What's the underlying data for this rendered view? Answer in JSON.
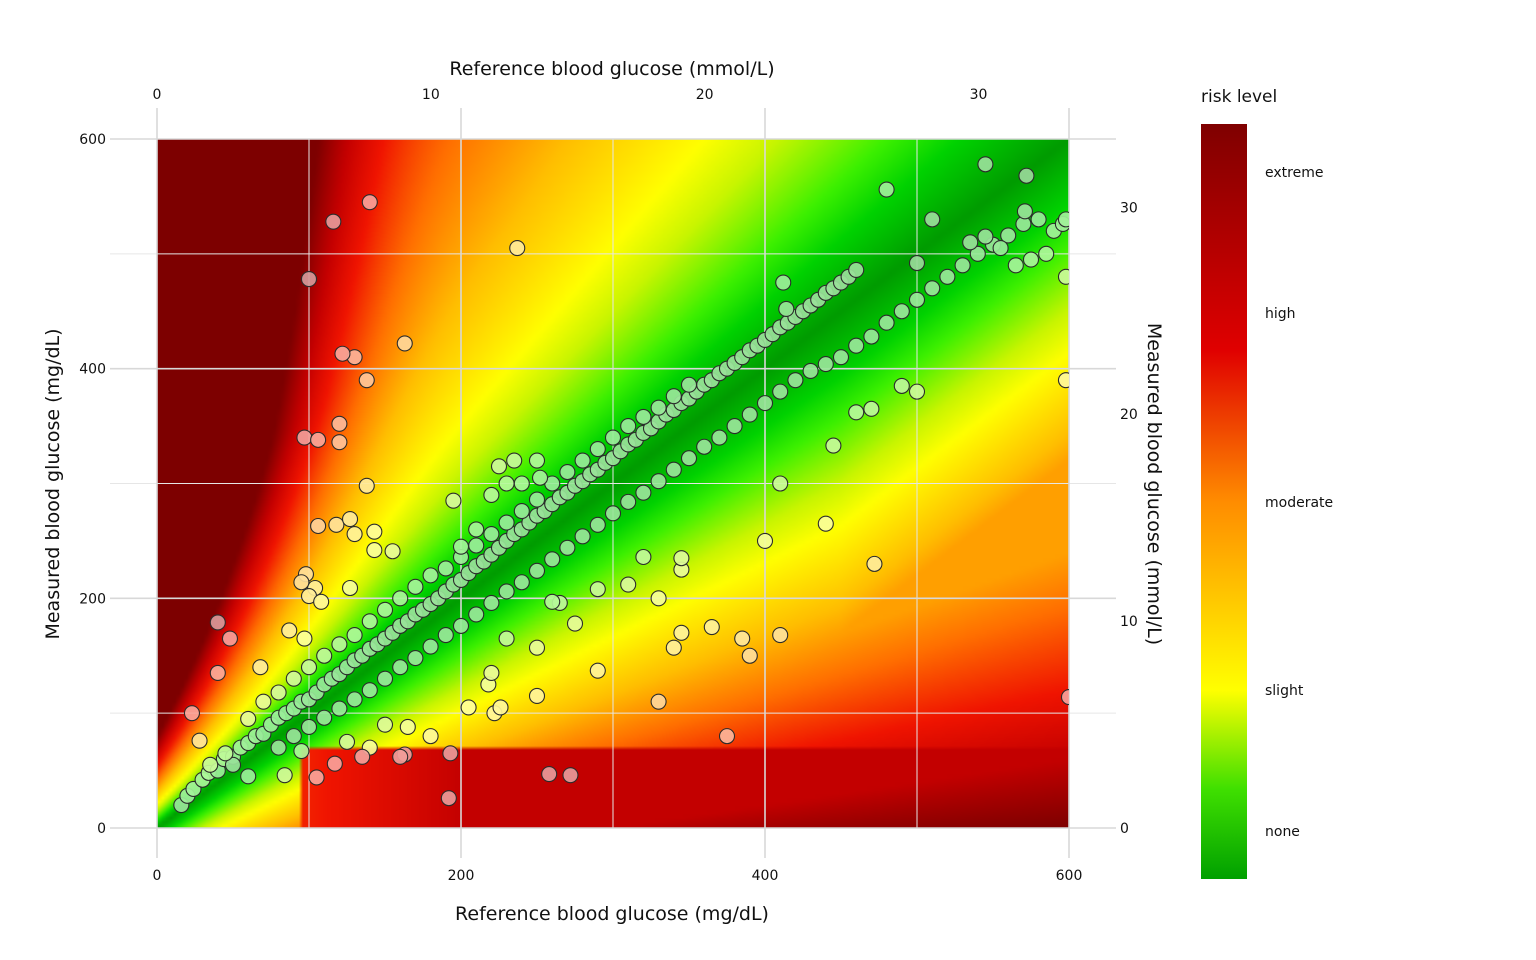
{
  "chart_data": {
    "type": "scatter",
    "title": "",
    "xlabel": "Reference blood glucose (mg/dL)",
    "ylabel": "Measured blood glucose (mg/dL)",
    "x2label": "Reference blood glucose (mmol/L)",
    "y2label": "Measured blood glucose (mmol/L)",
    "xlim": [
      0,
      600
    ],
    "ylim": [
      0,
      600
    ],
    "x_ticks": [
      "0",
      "200",
      "400",
      "600"
    ],
    "y_ticks": [
      "0",
      "200",
      "400",
      "600"
    ],
    "x2_ticks": [
      "0",
      "10",
      "20",
      "30"
    ],
    "y2_ticks": [
      "0",
      "10",
      "20",
      "30"
    ],
    "grid": true,
    "legend_position": "right",
    "legend": {
      "title": "risk level",
      "labels": [
        "extreme",
        "high",
        "moderate",
        "slight",
        "none"
      ],
      "colors": [
        "#7f0000",
        "#e00000",
        "#ff8c00",
        "#ffff00",
        "#00a000"
      ]
    },
    "background": "surveillance error grid risk heatmap",
    "series": [
      {
        "points": [
          [
            16,
            20
          ],
          [
            20,
            28
          ],
          [
            24,
            34
          ],
          [
            30,
            42
          ],
          [
            34,
            48
          ],
          [
            40,
            50
          ],
          [
            44,
            60
          ],
          [
            50,
            62
          ],
          [
            55,
            70
          ],
          [
            60,
            74
          ],
          [
            65,
            80
          ],
          [
            70,
            82
          ],
          [
            75,
            90
          ],
          [
            80,
            96
          ],
          [
            85,
            100
          ],
          [
            90,
            104
          ],
          [
            95,
            110
          ],
          [
            100,
            112
          ],
          [
            105,
            118
          ],
          [
            110,
            125
          ],
          [
            115,
            130
          ],
          [
            120,
            134
          ],
          [
            125,
            140
          ],
          [
            130,
            146
          ],
          [
            135,
            150
          ],
          [
            140,
            156
          ],
          [
            145,
            160
          ],
          [
            150,
            165
          ],
          [
            155,
            170
          ],
          [
            160,
            176
          ],
          [
            165,
            180
          ],
          [
            170,
            186
          ],
          [
            175,
            190
          ],
          [
            180,
            195
          ],
          [
            185,
            200
          ],
          [
            190,
            206
          ],
          [
            195,
            212
          ],
          [
            200,
            216
          ],
          [
            205,
            222
          ],
          [
            210,
            228
          ],
          [
            215,
            232
          ],
          [
            220,
            238
          ],
          [
            225,
            244
          ],
          [
            230,
            250
          ],
          [
            235,
            256
          ],
          [
            240,
            260
          ],
          [
            245,
            266
          ],
          [
            250,
            272
          ],
          [
            255,
            276
          ],
          [
            260,
            282
          ],
          [
            265,
            288
          ],
          [
            270,
            292
          ],
          [
            275,
            298
          ],
          [
            280,
            302
          ],
          [
            285,
            308
          ],
          [
            290,
            312
          ],
          [
            295,
            318
          ],
          [
            300,
            322
          ],
          [
            305,
            328
          ],
          [
            310,
            334
          ],
          [
            315,
            338
          ],
          [
            320,
            344
          ],
          [
            325,
            348
          ],
          [
            330,
            354
          ],
          [
            335,
            360
          ],
          [
            340,
            364
          ],
          [
            345,
            370
          ],
          [
            350,
            374
          ],
          [
            355,
            380
          ],
          [
            360,
            386
          ],
          [
            365,
            390
          ],
          [
            370,
            396
          ],
          [
            375,
            400
          ],
          [
            380,
            405
          ],
          [
            385,
            410
          ],
          [
            390,
            416
          ],
          [
            395,
            420
          ],
          [
            400,
            425
          ],
          [
            405,
            430
          ],
          [
            410,
            436
          ],
          [
            415,
            440
          ],
          [
            420,
            445
          ],
          [
            425,
            450
          ],
          [
            430,
            455
          ],
          [
            435,
            460
          ],
          [
            440,
            466
          ],
          [
            445,
            470
          ],
          [
            450,
            475
          ],
          [
            455,
            480
          ],
          [
            460,
            486
          ],
          [
            60,
            95
          ],
          [
            70,
            110
          ],
          [
            80,
            118
          ],
          [
            90,
            130
          ],
          [
            100,
            140
          ],
          [
            110,
            150
          ],
          [
            120,
            160
          ],
          [
            130,
            168
          ],
          [
            140,
            180
          ],
          [
            150,
            190
          ],
          [
            160,
            200
          ],
          [
            170,
            210
          ],
          [
            180,
            220
          ],
          [
            190,
            226
          ],
          [
            200,
            236
          ],
          [
            210,
            246
          ],
          [
            220,
            256
          ],
          [
            230,
            266
          ],
          [
            240,
            276
          ],
          [
            250,
            286
          ],
          [
            80,
            70
          ],
          [
            90,
            80
          ],
          [
            100,
            88
          ],
          [
            110,
            96
          ],
          [
            120,
            104
          ],
          [
            130,
            112
          ],
          [
            140,
            120
          ],
          [
            150,
            130
          ],
          [
            160,
            140
          ],
          [
            170,
            148
          ],
          [
            180,
            158
          ],
          [
            190,
            168
          ],
          [
            200,
            176
          ],
          [
            210,
            186
          ],
          [
            220,
            196
          ],
          [
            230,
            206
          ],
          [
            240,
            214
          ],
          [
            250,
            224
          ],
          [
            260,
            234
          ],
          [
            270,
            244
          ],
          [
            280,
            254
          ],
          [
            290,
            264
          ],
          [
            300,
            274
          ],
          [
            310,
            284
          ],
          [
            320,
            292
          ],
          [
            330,
            302
          ],
          [
            340,
            312
          ],
          [
            350,
            322
          ],
          [
            360,
            332
          ],
          [
            370,
            340
          ],
          [
            260,
            300
          ],
          [
            270,
            310
          ],
          [
            280,
            320
          ],
          [
            290,
            330
          ],
          [
            300,
            340
          ],
          [
            310,
            350
          ],
          [
            320,
            358
          ],
          [
            330,
            366
          ],
          [
            340,
            376
          ],
          [
            350,
            386
          ],
          [
            380,
            350
          ],
          [
            390,
            360
          ],
          [
            400,
            370
          ],
          [
            410,
            380
          ],
          [
            420,
            390
          ],
          [
            430,
            398
          ],
          [
            440,
            404
          ],
          [
            450,
            410
          ],
          [
            460,
            420
          ],
          [
            470,
            428
          ],
          [
            480,
            440
          ],
          [
            490,
            450
          ],
          [
            500,
            460
          ],
          [
            510,
            470
          ],
          [
            520,
            480
          ],
          [
            530,
            490
          ],
          [
            540,
            500
          ],
          [
            550,
            508
          ],
          [
            560,
            516
          ],
          [
            570,
            526
          ],
          [
            580,
            530
          ],
          [
            590,
            520
          ],
          [
            596,
            526
          ],
          [
            598,
            530
          ],
          [
            585,
            500
          ],
          [
            575,
            495
          ],
          [
            565,
            490
          ],
          [
            555,
            505
          ],
          [
            545,
            515
          ],
          [
            535,
            510
          ],
          [
            480,
            556
          ],
          [
            545,
            578
          ],
          [
            572,
            568
          ],
          [
            571,
            537
          ],
          [
            598,
            480
          ],
          [
            598,
            390
          ],
          [
            600,
            114
          ],
          [
            510,
            530
          ],
          [
            500,
            492
          ],
          [
            490,
            385
          ],
          [
            414,
            452
          ],
          [
            412,
            475
          ],
          [
            500,
            380
          ],
          [
            470,
            365
          ],
          [
            460,
            362
          ],
          [
            445,
            333
          ],
          [
            440,
            265
          ],
          [
            472,
            230
          ],
          [
            400,
            250
          ],
          [
            410,
            300
          ],
          [
            330,
            200
          ],
          [
            345,
            225
          ],
          [
            345,
            235
          ],
          [
            320,
            236
          ],
          [
            310,
            212
          ],
          [
            290,
            208
          ],
          [
            275,
            178
          ],
          [
            265,
            196
          ],
          [
            260,
            197
          ],
          [
            250,
            157
          ],
          [
            250,
            115
          ],
          [
            290,
            137
          ],
          [
            330,
            110
          ],
          [
            340,
            157
          ],
          [
            345,
            170
          ],
          [
            365,
            175
          ],
          [
            385,
            165
          ],
          [
            390,
            150
          ],
          [
            410,
            168
          ],
          [
            375,
            80
          ],
          [
            272,
            46
          ],
          [
            258,
            47
          ],
          [
            192,
            26
          ],
          [
            193,
            65
          ],
          [
            205,
            105
          ],
          [
            222,
            100
          ],
          [
            226,
            105
          ],
          [
            218,
            125
          ],
          [
            220,
            135
          ],
          [
            230,
            165
          ],
          [
            200,
            245
          ],
          [
            210,
            260
          ],
          [
            230,
            300
          ],
          [
            235,
            320
          ],
          [
            250,
            320
          ],
          [
            252,
            305
          ],
          [
            240,
            300
          ],
          [
            225,
            315
          ],
          [
            220,
            290
          ],
          [
            195,
            285
          ],
          [
            140,
            545
          ],
          [
            116,
            528
          ],
          [
            100,
            478
          ],
          [
            130,
            410
          ],
          [
            122,
            413
          ],
          [
            138,
            390
          ],
          [
            163,
            422
          ],
          [
            237,
            505
          ],
          [
            120,
            352
          ],
          [
            97,
            340
          ],
          [
            106,
            338
          ],
          [
            120,
            336
          ],
          [
            138,
            298
          ],
          [
            106,
            263
          ],
          [
            118,
            264
          ],
          [
            127,
            269
          ],
          [
            130,
            256
          ],
          [
            143,
            258
          ],
          [
            143,
            242
          ],
          [
            155,
            241
          ],
          [
            98,
            221
          ],
          [
            104,
            209
          ],
          [
            127,
            209
          ],
          [
            95,
            214
          ],
          [
            100,
            202
          ],
          [
            108,
            197
          ],
          [
            87,
            172
          ],
          [
            97,
            165
          ],
          [
            40,
            179
          ],
          [
            48,
            165
          ],
          [
            40,
            135
          ],
          [
            68,
            140
          ],
          [
            23,
            100
          ],
          [
            28,
            76
          ],
          [
            95,
            67
          ],
          [
            84,
            46
          ],
          [
            105,
            44
          ],
          [
            117,
            56
          ],
          [
            125,
            75
          ],
          [
            163,
            64
          ],
          [
            160,
            62
          ],
          [
            165,
            88
          ],
          [
            180,
            80
          ],
          [
            150,
            90
          ],
          [
            140,
            70
          ],
          [
            135,
            62
          ],
          [
            60,
            45
          ],
          [
            50,
            55
          ],
          [
            45,
            65
          ],
          [
            35,
            55
          ]
        ]
      }
    ]
  }
}
